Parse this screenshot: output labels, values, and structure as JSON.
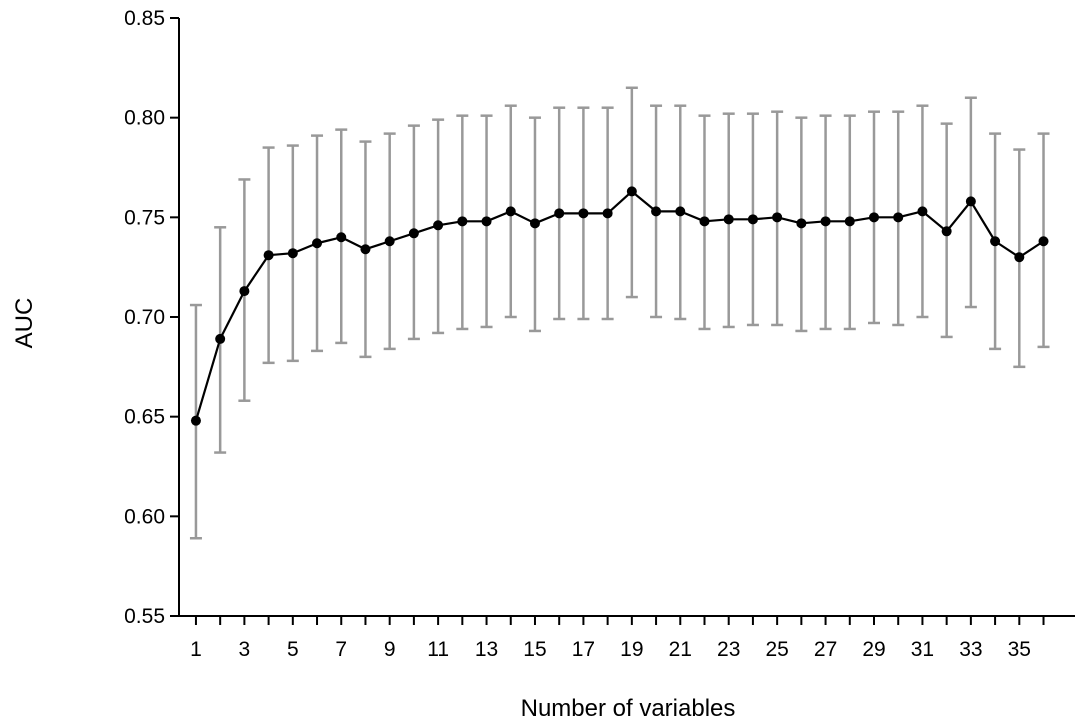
{
  "chart_data": {
    "type": "line",
    "title": "",
    "xlabel": "Number of variables",
    "ylabel": "AUC",
    "xlim": [
      0.3,
      37.3
    ],
    "ylim": [
      0.55,
      0.85
    ],
    "x_ticks": [
      1,
      3,
      5,
      7,
      9,
      11,
      13,
      15,
      17,
      19,
      21,
      23,
      25,
      27,
      29,
      31,
      33,
      35
    ],
    "y_ticks": [
      "0.55",
      "0.60",
      "0.65",
      "0.70",
      "0.75",
      "0.80",
      "0.85"
    ],
    "grid": false,
    "legend": "none",
    "colors": {
      "line": "#000000",
      "marker": "#000000",
      "error_bar": "#999999"
    },
    "series": [
      {
        "x": [
          1,
          2,
          3,
          4,
          5,
          6,
          7,
          8,
          9,
          10,
          11,
          12,
          13,
          14,
          15,
          16,
          17,
          18,
          19,
          20,
          21,
          22,
          23,
          24,
          25,
          26,
          27,
          28,
          29,
          30,
          31,
          32,
          33,
          34,
          35,
          36
        ],
        "values": [
          0.648,
          0.689,
          0.713,
          0.731,
          0.732,
          0.737,
          0.74,
          0.734,
          0.738,
          0.742,
          0.746,
          0.748,
          0.748,
          0.753,
          0.747,
          0.752,
          0.752,
          0.752,
          0.763,
          0.753,
          0.753,
          0.748,
          0.749,
          0.749,
          0.75,
          0.747,
          0.748,
          0.748,
          0.75,
          0.75,
          0.753,
          0.743,
          0.758,
          0.738,
          0.73,
          0.738
        ],
        "upper": [
          0.706,
          0.745,
          0.769,
          0.785,
          0.786,
          0.791,
          0.794,
          0.788,
          0.792,
          0.796,
          0.799,
          0.801,
          0.801,
          0.806,
          0.8,
          0.805,
          0.805,
          0.805,
          0.815,
          0.806,
          0.806,
          0.801,
          0.802,
          0.802,
          0.803,
          0.8,
          0.801,
          0.801,
          0.803,
          0.803,
          0.806,
          0.797,
          0.81,
          0.792,
          0.784,
          0.792
        ],
        "lower": [
          0.589,
          0.632,
          0.658,
          0.677,
          0.678,
          0.683,
          0.687,
          0.68,
          0.684,
          0.689,
          0.692,
          0.694,
          0.695,
          0.7,
          0.693,
          0.699,
          0.699,
          0.699,
          0.71,
          0.7,
          0.699,
          0.694,
          0.695,
          0.696,
          0.696,
          0.693,
          0.694,
          0.694,
          0.697,
          0.696,
          0.7,
          0.69,
          0.705,
          0.684,
          0.675,
          0.685
        ]
      }
    ]
  }
}
